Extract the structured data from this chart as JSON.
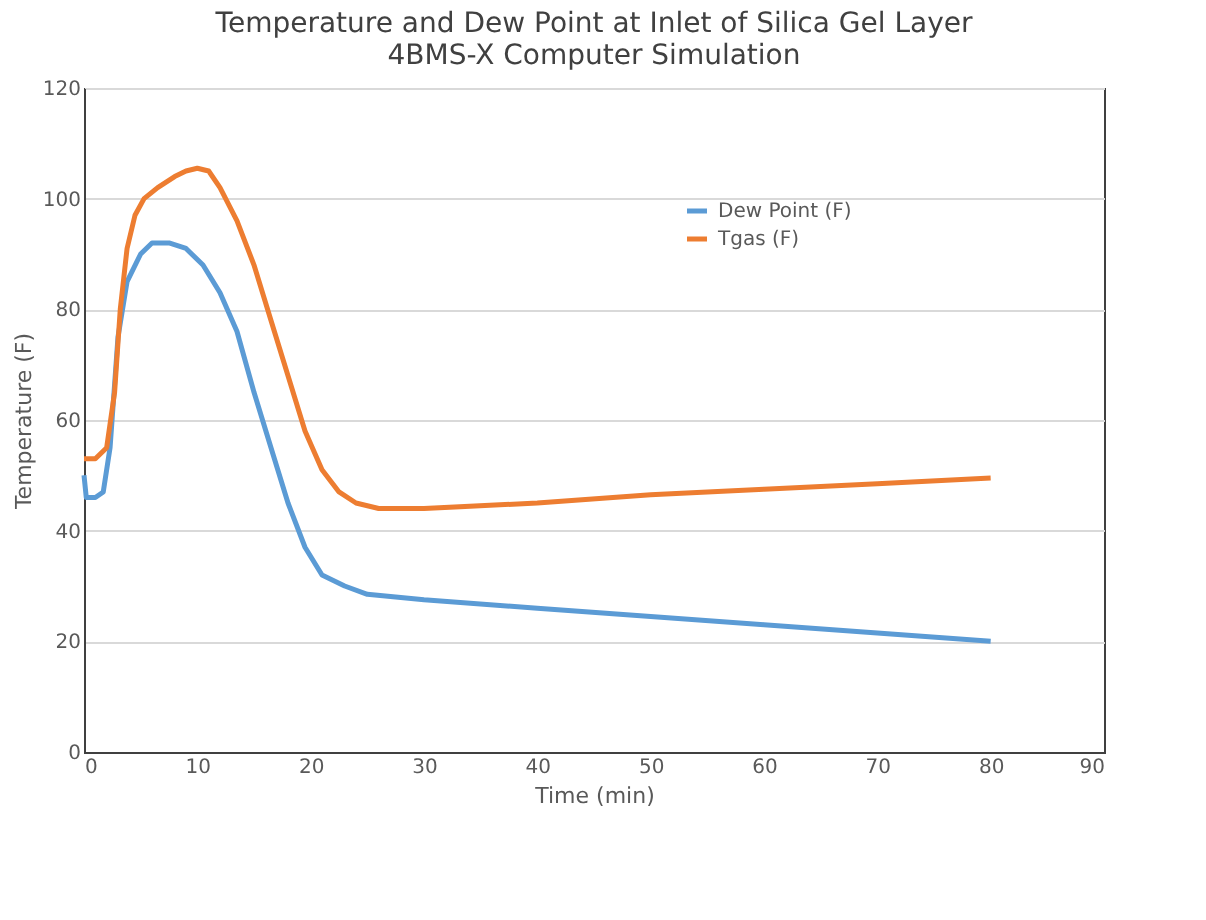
{
  "chart_data": {
    "type": "line",
    "title": [
      "Temperature and Dew Point at Inlet of Silica Gel Layer",
      "4BMS-X Computer Simulation"
    ],
    "xlabel": "Time (min)",
    "ylabel": "Temperature (F)",
    "xlim": [
      0,
      90
    ],
    "xticks": [
      0,
      10,
      20,
      30,
      40,
      50,
      60,
      70,
      80,
      90
    ],
    "ylim": [
      0,
      120
    ],
    "yticks": [
      0,
      20,
      40,
      60,
      80,
      100,
      120
    ],
    "grid": "y",
    "legend": "top right",
    "marker": "none",
    "line_style": "solid",
    "series": [
      {
        "name": "Dew Point (F)",
        "color": "#5b9bd5",
        "x": [
          0,
          0.2,
          1,
          1.7,
          2.3,
          3,
          3.8,
          5,
          6,
          7.5,
          9,
          10.5,
          12,
          13.5,
          15,
          16.5,
          18,
          19.5,
          21,
          23,
          25,
          30,
          40,
          50,
          60,
          70,
          80
        ],
        "values": [
          50,
          46,
          46,
          47,
          55,
          75,
          85,
          90,
          92,
          92,
          91,
          88,
          83,
          76,
          65,
          55,
          45,
          37,
          32,
          30,
          28.5,
          27.5,
          26,
          24.5,
          23,
          21.5,
          20
        ]
      },
      {
        "name": "Tgas (F)",
        "color": "#ed7d31",
        "x": [
          0,
          1,
          2,
          2.7,
          3.2,
          3.8,
          4.5,
          5.3,
          6.5,
          8,
          9,
          10,
          11,
          12,
          13.5,
          15,
          16.5,
          18,
          19.5,
          21,
          22.5,
          24,
          26,
          30,
          40,
          50,
          60,
          70,
          80
        ],
        "values": [
          53,
          53,
          55,
          65,
          80,
          91,
          97,
          100,
          102,
          104,
          105,
          105.5,
          105,
          102,
          96,
          88,
          78,
          68,
          58,
          51,
          47,
          45,
          44,
          44,
          45,
          46.5,
          47.5,
          48.5,
          49.5
        ]
      }
    ]
  }
}
